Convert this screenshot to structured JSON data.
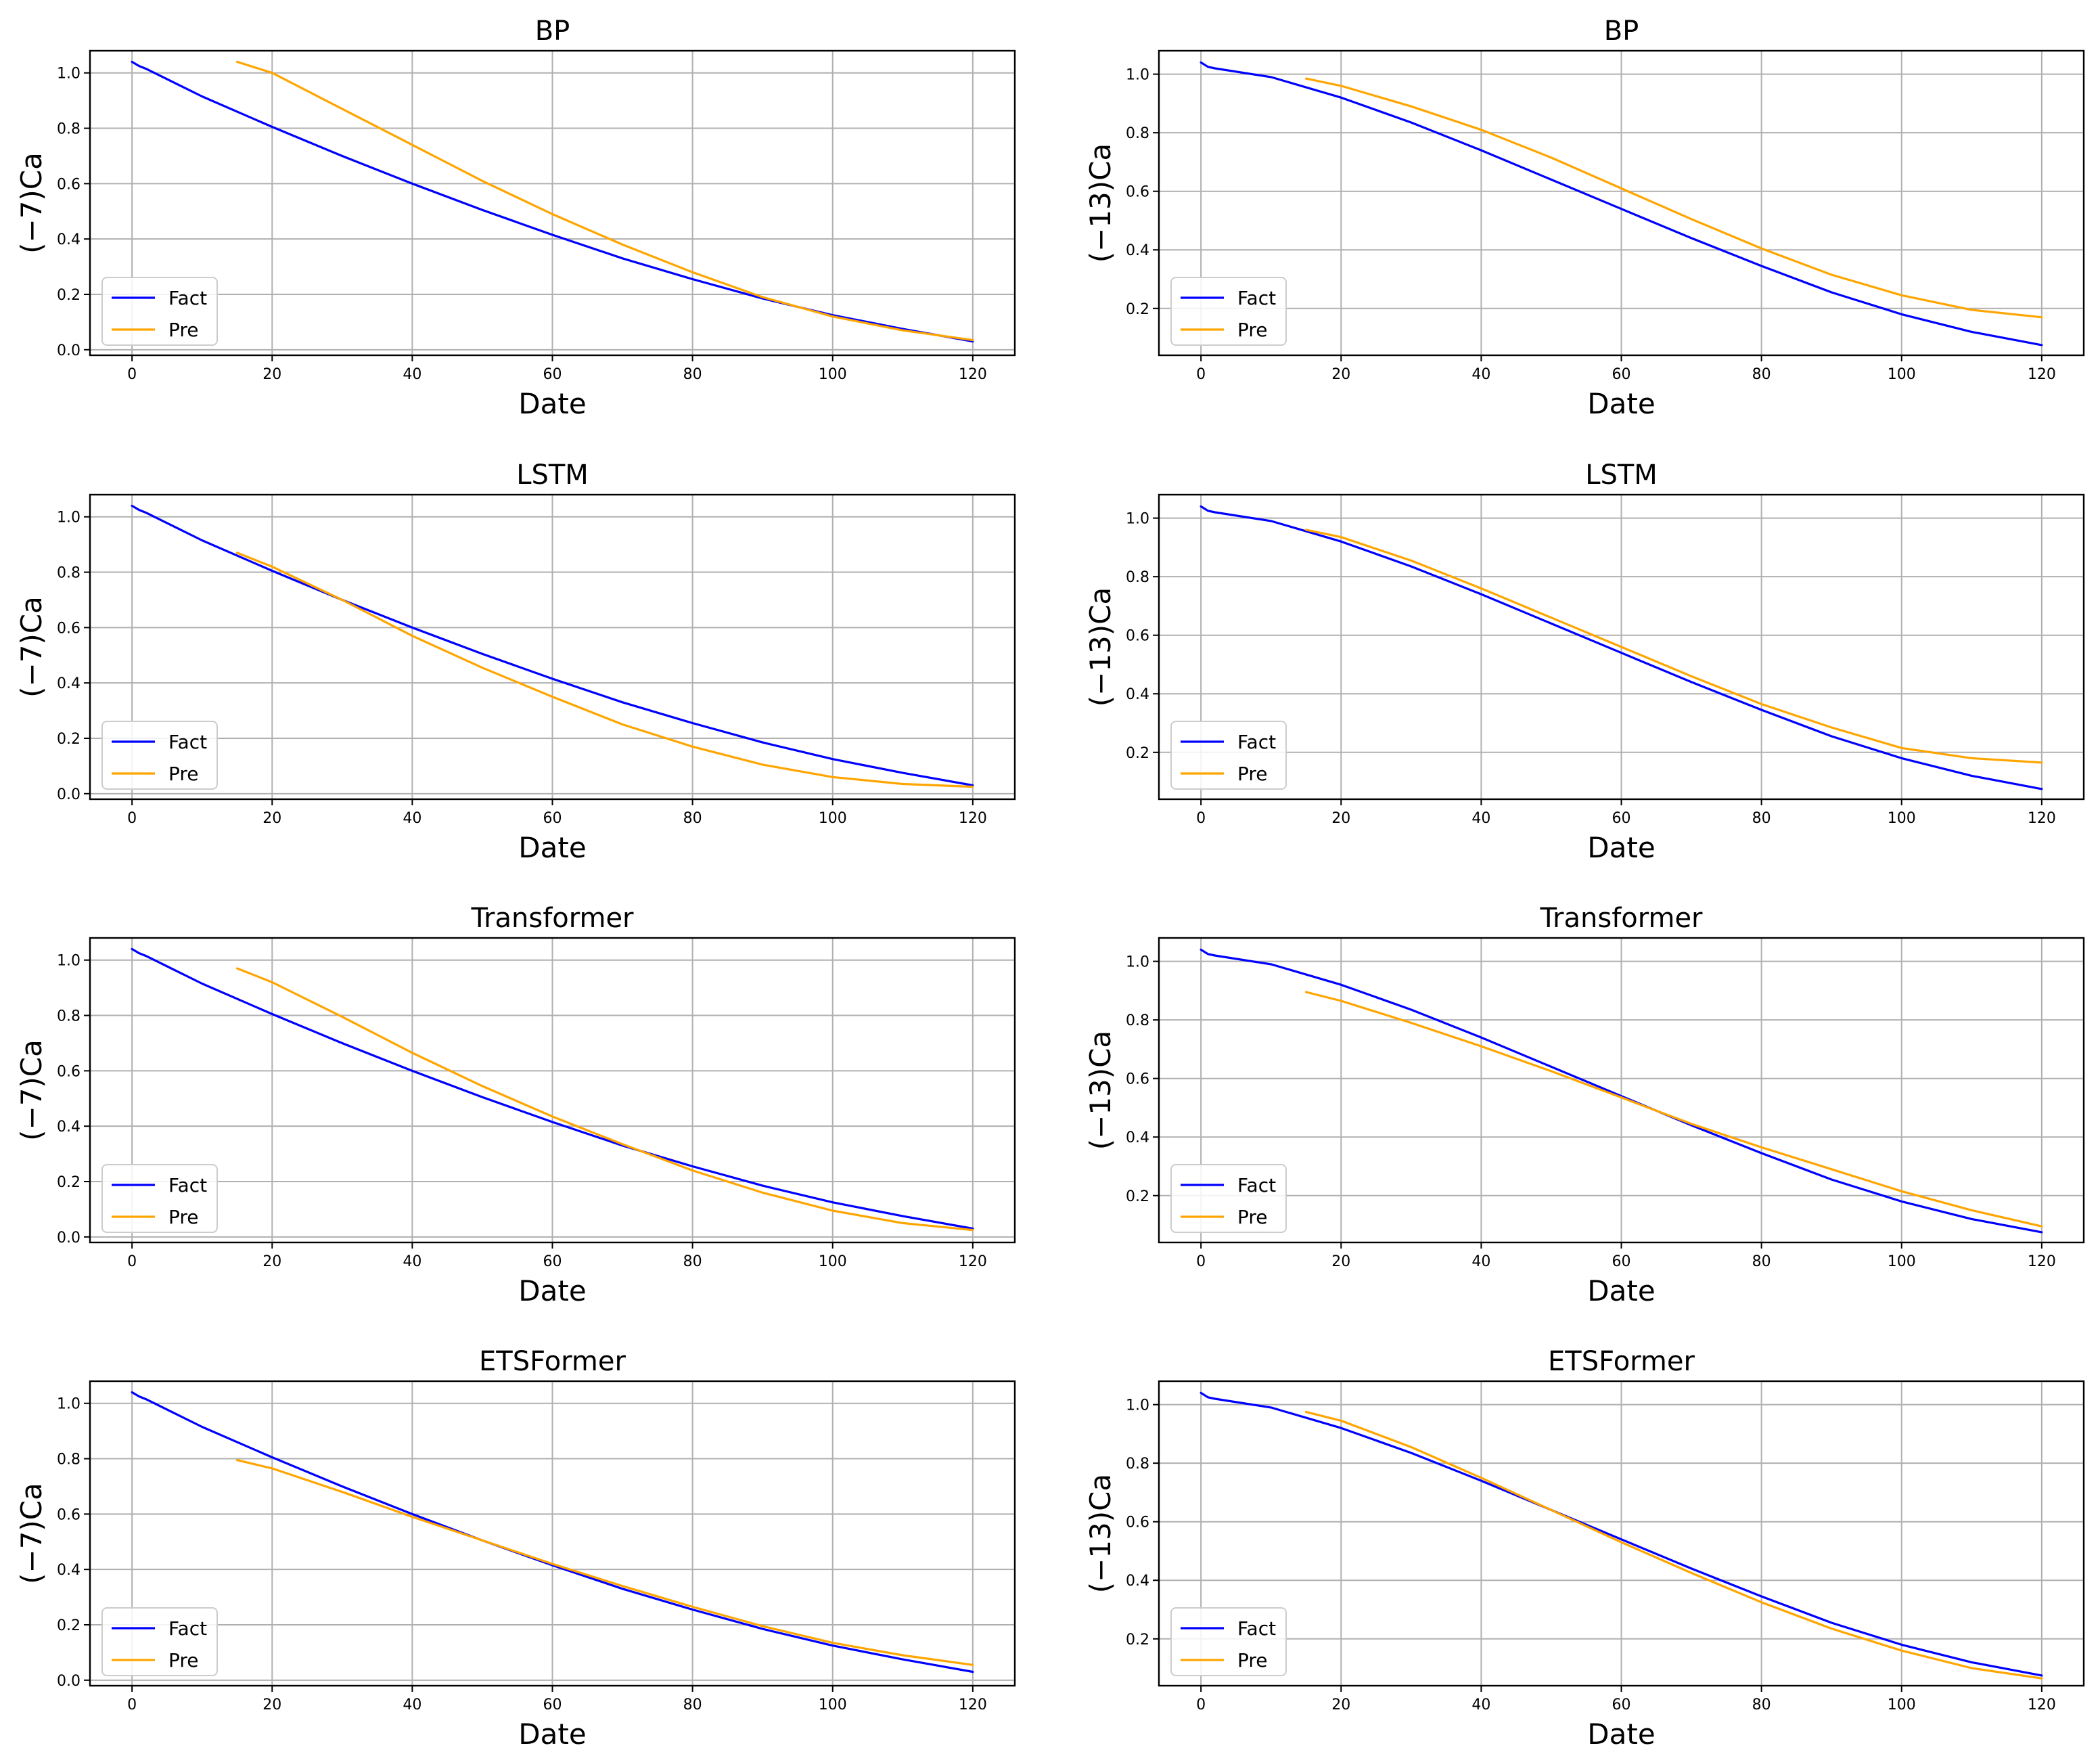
{
  "chart_data": [
    {
      "type": "line",
      "title": "BP",
      "xlabel": "Date",
      "ylabel": "(−7)Ca",
      "xlim": [
        -6,
        126
      ],
      "ylim": [
        -0.02,
        1.08
      ],
      "xticks": [
        0,
        20,
        40,
        60,
        80,
        100,
        120
      ],
      "yticks": [
        0.0,
        0.2,
        0.4,
        0.6,
        0.8,
        1.0
      ],
      "ytick_labels": [
        "0.0",
        "0.2",
        "0.4",
        "0.6",
        "0.8",
        "1.0"
      ],
      "grid": true,
      "legend": "lower-left",
      "series": [
        {
          "name": "Fact",
          "color": "#0000ff",
          "x": [
            0,
            1,
            2,
            10,
            20,
            30,
            40,
            50,
            60,
            70,
            80,
            90,
            100,
            110,
            120
          ],
          "y": [
            1.04,
            1.025,
            1.015,
            0.915,
            0.805,
            0.7,
            0.6,
            0.505,
            0.415,
            0.33,
            0.255,
            0.185,
            0.125,
            0.075,
            0.03
          ]
        },
        {
          "name": "Pre",
          "color": "#ffa500",
          "x": [
            15,
            20,
            30,
            40,
            50,
            60,
            70,
            80,
            90,
            100,
            110,
            120
          ],
          "y": [
            1.04,
            1.0,
            0.87,
            0.74,
            0.61,
            0.49,
            0.38,
            0.28,
            0.19,
            0.12,
            0.07,
            0.035
          ]
        }
      ]
    },
    {
      "type": "line",
      "title": "BP",
      "xlabel": "Date",
      "ylabel": "(−13)Ca",
      "xlim": [
        -6,
        126
      ],
      "ylim": [
        0.04,
        1.08
      ],
      "xticks": [
        0,
        20,
        40,
        60,
        80,
        100,
        120
      ],
      "yticks": [
        0.2,
        0.4,
        0.6,
        0.8,
        1.0
      ],
      "ytick_labels": [
        "0.2",
        "0.4",
        "0.6",
        "0.8",
        "1.0"
      ],
      "grid": true,
      "legend": "lower-left",
      "series": [
        {
          "name": "Fact",
          "color": "#0000ff",
          "x": [
            0,
            1,
            2,
            10,
            20,
            30,
            40,
            50,
            60,
            70,
            80,
            90,
            100,
            110,
            120
          ],
          "y": [
            1.04,
            1.025,
            1.02,
            0.99,
            0.92,
            0.835,
            0.74,
            0.64,
            0.54,
            0.44,
            0.345,
            0.255,
            0.18,
            0.12,
            0.075
          ]
        },
        {
          "name": "Pre",
          "color": "#ffa500",
          "x": [
            15,
            20,
            30,
            40,
            50,
            60,
            70,
            80,
            90,
            100,
            110,
            120
          ],
          "y": [
            0.985,
            0.96,
            0.89,
            0.81,
            0.715,
            0.61,
            0.505,
            0.405,
            0.315,
            0.245,
            0.195,
            0.17
          ]
        }
      ]
    },
    {
      "type": "line",
      "title": "LSTM",
      "xlabel": "Date",
      "ylabel": "(−7)Ca",
      "xlim": [
        -6,
        126
      ],
      "ylim": [
        -0.02,
        1.08
      ],
      "xticks": [
        0,
        20,
        40,
        60,
        80,
        100,
        120
      ],
      "yticks": [
        0.0,
        0.2,
        0.4,
        0.6,
        0.8,
        1.0
      ],
      "ytick_labels": [
        "0.0",
        "0.2",
        "0.4",
        "0.6",
        "0.8",
        "1.0"
      ],
      "grid": true,
      "legend": "lower-left",
      "series": [
        {
          "name": "Fact",
          "color": "#0000ff",
          "x": [
            0,
            1,
            2,
            10,
            20,
            30,
            40,
            50,
            60,
            70,
            80,
            90,
            100,
            110,
            120
          ],
          "y": [
            1.04,
            1.025,
            1.015,
            0.915,
            0.805,
            0.7,
            0.6,
            0.505,
            0.415,
            0.33,
            0.255,
            0.185,
            0.125,
            0.075,
            0.03
          ]
        },
        {
          "name": "Pre",
          "color": "#ffa500",
          "x": [
            15,
            20,
            30,
            40,
            50,
            60,
            70,
            80,
            90,
            100,
            110,
            120
          ],
          "y": [
            0.87,
            0.82,
            0.7,
            0.57,
            0.455,
            0.35,
            0.25,
            0.17,
            0.105,
            0.06,
            0.035,
            0.025
          ]
        }
      ]
    },
    {
      "type": "line",
      "title": "LSTM",
      "xlabel": "Date",
      "ylabel": "(−13)Ca",
      "xlim": [
        -6,
        126
      ],
      "ylim": [
        0.04,
        1.08
      ],
      "xticks": [
        0,
        20,
        40,
        60,
        80,
        100,
        120
      ],
      "yticks": [
        0.2,
        0.4,
        0.6,
        0.8,
        1.0
      ],
      "ytick_labels": [
        "0.2",
        "0.4",
        "0.6",
        "0.8",
        "1.0"
      ],
      "grid": true,
      "legend": "lower-left",
      "series": [
        {
          "name": "Fact",
          "color": "#0000ff",
          "x": [
            0,
            1,
            2,
            10,
            20,
            30,
            40,
            50,
            60,
            70,
            80,
            90,
            100,
            110,
            120
          ],
          "y": [
            1.04,
            1.025,
            1.02,
            0.99,
            0.92,
            0.835,
            0.74,
            0.64,
            0.54,
            0.44,
            0.345,
            0.255,
            0.18,
            0.12,
            0.075
          ]
        },
        {
          "name": "Pre",
          "color": "#ffa500",
          "x": [
            15,
            20,
            30,
            40,
            50,
            60,
            70,
            80,
            90,
            100,
            110,
            120
          ],
          "y": [
            0.96,
            0.935,
            0.855,
            0.76,
            0.66,
            0.56,
            0.46,
            0.365,
            0.285,
            0.215,
            0.18,
            0.165
          ]
        }
      ]
    },
    {
      "type": "line",
      "title": "Transformer",
      "xlabel": "Date",
      "ylabel": "(−7)Ca",
      "xlim": [
        -6,
        126
      ],
      "ylim": [
        -0.02,
        1.08
      ],
      "xticks": [
        0,
        20,
        40,
        60,
        80,
        100,
        120
      ],
      "yticks": [
        0.0,
        0.2,
        0.4,
        0.6,
        0.8,
        1.0
      ],
      "ytick_labels": [
        "0.0",
        "0.2",
        "0.4",
        "0.6",
        "0.8",
        "1.0"
      ],
      "grid": true,
      "legend": "lower-left",
      "series": [
        {
          "name": "Fact",
          "color": "#0000ff",
          "x": [
            0,
            1,
            2,
            10,
            20,
            30,
            40,
            50,
            60,
            70,
            80,
            90,
            100,
            110,
            120
          ],
          "y": [
            1.04,
            1.025,
            1.015,
            0.915,
            0.805,
            0.7,
            0.6,
            0.505,
            0.415,
            0.33,
            0.255,
            0.185,
            0.125,
            0.075,
            0.03
          ]
        },
        {
          "name": "Pre",
          "color": "#ffa500",
          "x": [
            15,
            20,
            30,
            40,
            50,
            60,
            70,
            80,
            90,
            100,
            110,
            120
          ],
          "y": [
            0.97,
            0.92,
            0.795,
            0.665,
            0.545,
            0.435,
            0.335,
            0.24,
            0.16,
            0.095,
            0.05,
            0.025
          ]
        }
      ]
    },
    {
      "type": "line",
      "title": "Transformer",
      "xlabel": "Date",
      "ylabel": "(−13)Ca",
      "xlim": [
        -6,
        126
      ],
      "ylim": [
        0.04,
        1.08
      ],
      "xticks": [
        0,
        20,
        40,
        60,
        80,
        100,
        120
      ],
      "yticks": [
        0.2,
        0.4,
        0.6,
        0.8,
        1.0
      ],
      "ytick_labels": [
        "0.2",
        "0.4",
        "0.6",
        "0.8",
        "1.0"
      ],
      "grid": true,
      "legend": "lower-left",
      "series": [
        {
          "name": "Fact",
          "color": "#0000ff",
          "x": [
            0,
            1,
            2,
            10,
            20,
            30,
            40,
            50,
            60,
            70,
            80,
            90,
            100,
            110,
            120
          ],
          "y": [
            1.04,
            1.025,
            1.02,
            0.99,
            0.92,
            0.835,
            0.74,
            0.64,
            0.54,
            0.44,
            0.345,
            0.255,
            0.18,
            0.12,
            0.075
          ]
        },
        {
          "name": "Pre",
          "color": "#ffa500",
          "x": [
            15,
            20,
            30,
            40,
            50,
            60,
            70,
            80,
            90,
            100,
            110,
            120
          ],
          "y": [
            0.895,
            0.865,
            0.79,
            0.71,
            0.625,
            0.535,
            0.445,
            0.365,
            0.29,
            0.215,
            0.15,
            0.095
          ]
        }
      ]
    },
    {
      "type": "line",
      "title": "ETSFormer",
      "xlabel": "Date",
      "ylabel": "(−7)Ca",
      "xlim": [
        -6,
        126
      ],
      "ylim": [
        -0.02,
        1.08
      ],
      "xticks": [
        0,
        20,
        40,
        60,
        80,
        100,
        120
      ],
      "yticks": [
        0.0,
        0.2,
        0.4,
        0.6,
        0.8,
        1.0
      ],
      "ytick_labels": [
        "0.0",
        "0.2",
        "0.4",
        "0.6",
        "0.8",
        "1.0"
      ],
      "grid": true,
      "legend": "lower-left",
      "series": [
        {
          "name": "Fact",
          "color": "#0000ff",
          "x": [
            0,
            1,
            2,
            10,
            20,
            30,
            40,
            50,
            60,
            70,
            80,
            90,
            100,
            110,
            120
          ],
          "y": [
            1.04,
            1.025,
            1.015,
            0.915,
            0.805,
            0.7,
            0.6,
            0.505,
            0.415,
            0.33,
            0.255,
            0.185,
            0.125,
            0.075,
            0.03
          ]
        },
        {
          "name": "Pre",
          "color": "#ffa500",
          "x": [
            15,
            20,
            30,
            40,
            50,
            60,
            70,
            80,
            90,
            100,
            110,
            120
          ],
          "y": [
            0.795,
            0.765,
            0.68,
            0.59,
            0.505,
            0.42,
            0.34,
            0.265,
            0.195,
            0.135,
            0.09,
            0.055
          ]
        }
      ]
    },
    {
      "type": "line",
      "title": "ETSFormer",
      "xlabel": "Date",
      "ylabel": "(−13)Ca",
      "xlim": [
        -6,
        126
      ],
      "ylim": [
        0.04,
        1.08
      ],
      "xticks": [
        0,
        20,
        40,
        60,
        80,
        100,
        120
      ],
      "yticks": [
        0.2,
        0.4,
        0.6,
        0.8,
        1.0
      ],
      "ytick_labels": [
        "0.2",
        "0.4",
        "0.6",
        "0.8",
        "1.0"
      ],
      "grid": true,
      "legend": "lower-left",
      "series": [
        {
          "name": "Fact",
          "color": "#0000ff",
          "x": [
            0,
            1,
            2,
            10,
            20,
            30,
            40,
            50,
            60,
            70,
            80,
            90,
            100,
            110,
            120
          ],
          "y": [
            1.04,
            1.025,
            1.02,
            0.99,
            0.92,
            0.835,
            0.74,
            0.64,
            0.54,
            0.44,
            0.345,
            0.255,
            0.18,
            0.12,
            0.075
          ]
        },
        {
          "name": "Pre",
          "color": "#ffa500",
          "x": [
            15,
            20,
            30,
            40,
            50,
            60,
            70,
            80,
            90,
            100,
            110,
            120
          ],
          "y": [
            0.975,
            0.945,
            0.855,
            0.75,
            0.64,
            0.53,
            0.425,
            0.325,
            0.235,
            0.16,
            0.1,
            0.065
          ]
        }
      ]
    }
  ]
}
